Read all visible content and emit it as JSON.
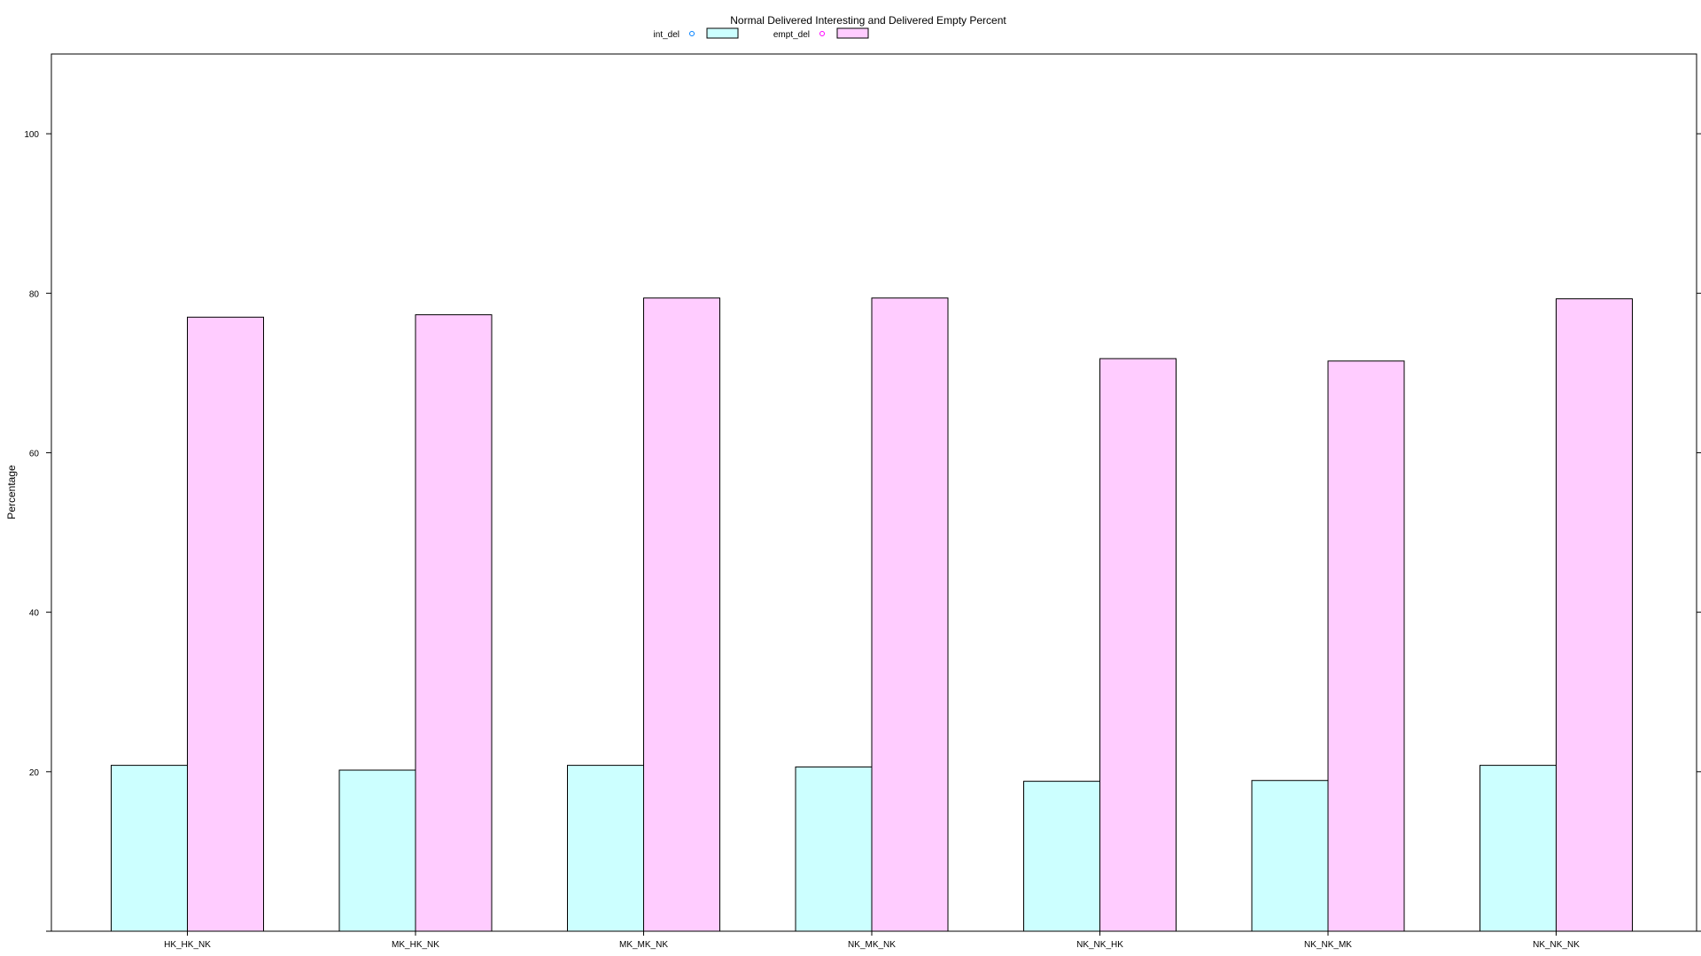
{
  "colors": {
    "int_del_fill": "#ccffff",
    "empt_del_fill": "#ffccff",
    "int_del_marker": "#0080ff",
    "empt_del_marker": "#ff00ff",
    "stroke": "#000000",
    "background": "#ffffff"
  },
  "chart_data": {
    "type": "bar",
    "title": "Normal Delivered Interesting and Delivered Empty Percent",
    "xlabel": "",
    "ylabel": "Percentage",
    "categories": [
      "HK_HK_NK",
      "MK_HK_NK",
      "MK_MK_NK",
      "NK_MK_NK",
      "NK_NK_HK",
      "NK_NK_MK",
      "NK_NK_NK"
    ],
    "series": [
      {
        "name": "int_del",
        "values": [
          20.8,
          20.2,
          20.8,
          20.6,
          18.8,
          18.9,
          20.8
        ]
      },
      {
        "name": "empt_del",
        "values": [
          77.0,
          77.3,
          79.4,
          79.4,
          71.8,
          71.5,
          79.3
        ]
      }
    ],
    "yticks": [
      20,
      40,
      60,
      80,
      100
    ],
    "ylim": [
      0,
      110
    ],
    "grid": false,
    "legend_position": "top"
  }
}
